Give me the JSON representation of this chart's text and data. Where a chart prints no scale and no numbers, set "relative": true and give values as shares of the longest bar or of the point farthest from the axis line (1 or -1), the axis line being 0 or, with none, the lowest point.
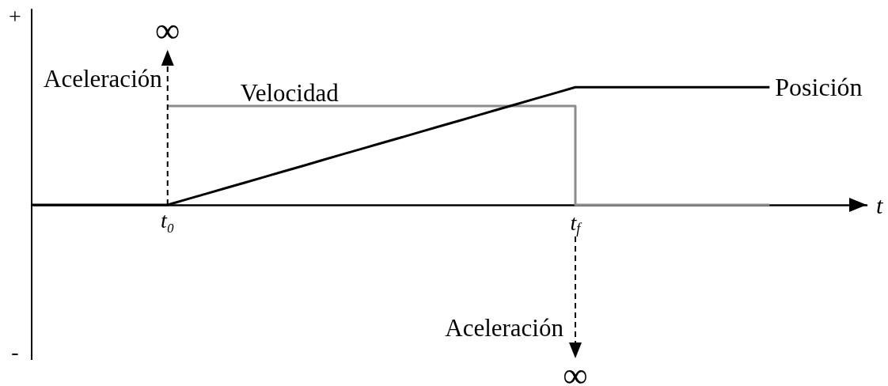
{
  "chart_data": {
    "type": "line",
    "relative": true,
    "xlabel": "t",
    "categories": [
      null,
      null,
      null,
      null,
      null,
      null,
      null,
      "t₀",
      null,
      null,
      null,
      null,
      null,
      null,
      null,
      null,
      null,
      null,
      null,
      null,
      null,
      null,
      null,
      null,
      null,
      null,
      null,
      null,
      "t$_{f}$",
      null,
      null,
      null,
      null,
      null,
      null,
      null,
      null,
      null,
      null,
      null,
      null,
      null,
      null,
      null
    ],
    "annotations": [
      "+",
      "-",
      "∞",
      "Aceleración",
      "∞",
      "Aceleración"
    ],
    "series": [
      {
        "name": "Posición",
        "color": "#000000",
        "values": [
          0,
          0,
          0,
          0,
          0,
          0,
          0,
          0,
          0.048,
          0.095,
          0.143,
          0.19,
          0.238,
          0.286,
          0.333,
          0.381,
          0.429,
          0.476,
          0.524,
          0.571,
          0.619,
          0.667,
          0.714,
          0.762,
          0.81,
          0.857,
          0.905,
          0.952,
          1,
          1,
          1,
          1,
          1,
          1,
          1,
          1,
          1,
          1,
          1,
          null,
          null,
          null,
          null,
          null
        ]
      },
      {
        "name": "Velocidad",
        "type": "step",
        "color": "#8c8c8c",
        "values": [
          null,
          null,
          null,
          null,
          null,
          null,
          null,
          0.84,
          0.84,
          0.84,
          0.84,
          0.84,
          0.84,
          0.84,
          0.84,
          0.84,
          0.84,
          0.84,
          0.84,
          0.84,
          0.84,
          0.84,
          0.84,
          0.84,
          0.84,
          0.84,
          0.84,
          0.84,
          0,
          0,
          0,
          0,
          0,
          0,
          0,
          0,
          0,
          0,
          0,
          null,
          null,
          null,
          null,
          null
        ]
      }
    ]
  }
}
